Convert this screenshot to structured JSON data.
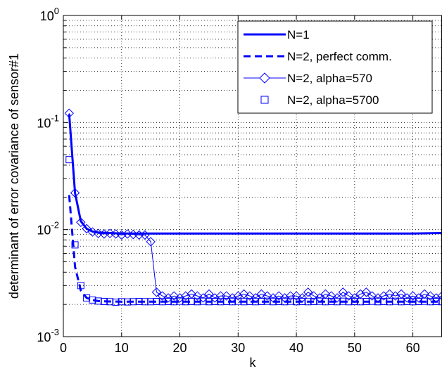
{
  "chart_data": {
    "type": "line",
    "title": "",
    "xlabel": "k",
    "ylabel": "determinant of error covariance of sensor#1",
    "xlim": [
      0,
      65
    ],
    "ylim": [
      0.001,
      1
    ],
    "yscale": "log",
    "grid": true,
    "legend_position": "top-right",
    "x_ticks": [
      {
        "value": 0,
        "label": "0"
      },
      {
        "value": 10,
        "label": "10"
      },
      {
        "value": 20,
        "label": "20"
      },
      {
        "value": 30,
        "label": "30"
      },
      {
        "value": 40,
        "label": "40"
      },
      {
        "value": 50,
        "label": "50"
      },
      {
        "value": 60,
        "label": "60"
      }
    ],
    "y_ticks": [
      {
        "value": 0.001,
        "base": "10",
        "exp": "-3"
      },
      {
        "value": 0.01,
        "base": "10",
        "exp": "-2"
      },
      {
        "value": 0.1,
        "base": "10",
        "exp": "-1"
      },
      {
        "value": 1,
        "base": "10",
        "exp": "0"
      }
    ],
    "colors": {
      "series": "#0000ff",
      "grid": "#000000",
      "axes": "#000000"
    },
    "series": [
      {
        "name": "N=1",
        "style": "solid-thick",
        "x": [
          1,
          2,
          3,
          4,
          5,
          6,
          8,
          10,
          15,
          20,
          30,
          40,
          50,
          60,
          65
        ],
        "y": [
          0.12,
          0.022,
          0.012,
          0.0102,
          0.0096,
          0.0094,
          0.0093,
          0.0092,
          0.0092,
          0.0092,
          0.0092,
          0.0092,
          0.0092,
          0.0092,
          0.0093
        ]
      },
      {
        "name": "N=2, perfect comm.",
        "style": "dashed",
        "x": [
          1,
          2,
          3,
          4,
          5,
          6,
          8,
          10,
          15,
          20,
          30,
          40,
          50,
          60,
          65
        ],
        "y": [
          0.021,
          0.0045,
          0.0027,
          0.0023,
          0.0022,
          0.00215,
          0.00213,
          0.00212,
          0.00212,
          0.00212,
          0.00212,
          0.00212,
          0.00212,
          0.00212,
          0.00212
        ]
      },
      {
        "name": "N=2, alpha=570",
        "style": "thin-diamond",
        "x": [
          1,
          2,
          3,
          4,
          5,
          6,
          7,
          8,
          9,
          10,
          11,
          12,
          13,
          14,
          15,
          16,
          17,
          18,
          19,
          20,
          21,
          22,
          23,
          24,
          25,
          26,
          27,
          28,
          29,
          30,
          31,
          32,
          33,
          34,
          35,
          36,
          37,
          38,
          39,
          40,
          41,
          42,
          43,
          44,
          45,
          46,
          47,
          48,
          49,
          50,
          51,
          52,
          53,
          54,
          55,
          56,
          57,
          58,
          59,
          60,
          61,
          62,
          63,
          64,
          65
        ],
        "y": [
          0.122,
          0.022,
          0.0117,
          0.0102,
          0.0095,
          0.0092,
          0.0091,
          0.0092,
          0.0091,
          0.0089,
          0.0091,
          0.009,
          0.0089,
          0.0089,
          0.0077,
          0.0026,
          0.0024,
          0.0023,
          0.0024,
          0.0023,
          0.0024,
          0.0025,
          0.0024,
          0.0023,
          0.0025,
          0.0023,
          0.0024,
          0.0024,
          0.0023,
          0.0024,
          0.0025,
          0.0024,
          0.0023,
          0.0025,
          0.0024,
          0.0023,
          0.0024,
          0.0023,
          0.0024,
          0.0024,
          0.0023,
          0.0026,
          0.0024,
          0.0023,
          0.0025,
          0.0024,
          0.0023,
          0.0026,
          0.0024,
          0.0023,
          0.0025,
          0.0026,
          0.0024,
          0.0023,
          0.0024,
          0.0025,
          0.0024,
          0.0025,
          0.0023,
          0.0024,
          0.0023,
          0.0025,
          0.0024,
          0.0023,
          0.0024
        ]
      },
      {
        "name": "N=2, alpha=5700",
        "style": "markers-square",
        "x": [
          1,
          2,
          3,
          4,
          5,
          6,
          7,
          8,
          9,
          10,
          11,
          12,
          13,
          14,
          15,
          16,
          17,
          18,
          19,
          20,
          21,
          22,
          23,
          24,
          25,
          26,
          27,
          28,
          29,
          30,
          31,
          32,
          33,
          34,
          35,
          36,
          37,
          38,
          39,
          40,
          41,
          42,
          43,
          44,
          45,
          46,
          47,
          48,
          49,
          50,
          51,
          52,
          53,
          54,
          55,
          56,
          57,
          58,
          59,
          60,
          61,
          62,
          63,
          64,
          65
        ],
        "y": [
          0.045,
          0.0072,
          0.003,
          0.0023,
          0.0022,
          0.00215,
          0.00213,
          0.00212,
          0.0021,
          0.00212,
          0.00211,
          0.00212,
          0.00213,
          0.00212,
          0.00212,
          0.00213,
          0.00212,
          0.00213,
          0.00212,
          0.00214,
          0.00212,
          0.00213,
          0.00212,
          0.00214,
          0.00212,
          0.00213,
          0.00212,
          0.00213,
          0.00212,
          0.00214,
          0.00212,
          0.00213,
          0.00212,
          0.00213,
          0.00214,
          0.00212,
          0.00213,
          0.00212,
          0.00214,
          0.00212,
          0.00213,
          0.00212,
          0.00213,
          0.00214,
          0.00212,
          0.00213,
          0.00212,
          0.00214,
          0.00212,
          0.00213,
          0.00212,
          0.00213,
          0.00214,
          0.00212,
          0.00213,
          0.00212,
          0.00214,
          0.00212,
          0.00213,
          0.00212,
          0.00213,
          0.00214,
          0.00212,
          0.00213,
          0.00212
        ]
      }
    ]
  }
}
